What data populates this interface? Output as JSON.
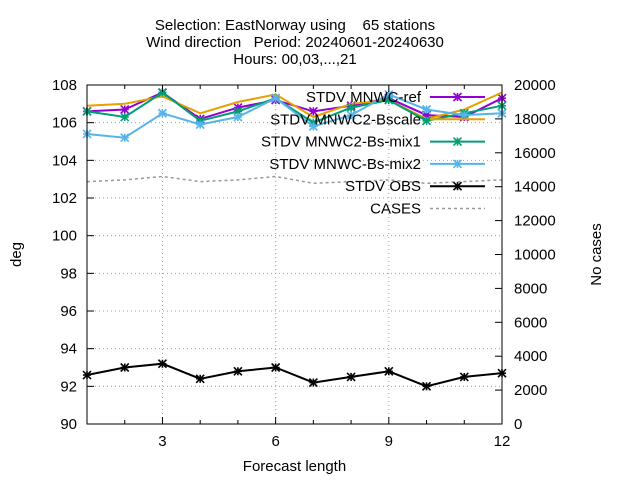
{
  "chart_data": {
    "type": "line",
    "title_lines": [
      "Selection: EastNorway using    65 stations",
      "Wind direction   Period: 20240601-20240630",
      "Hours: 00,03,...,21"
    ],
    "xlabel": "Forecast length",
    "ylabel": "deg",
    "y2label": "No cases",
    "xlim": [
      1,
      12
    ],
    "ylim": [
      90,
      108
    ],
    "y2lim": [
      0,
      20000
    ],
    "xticks": [
      "3",
      "6",
      "9",
      "12"
    ],
    "yticks": [
      "90",
      "92",
      "94",
      "96",
      "98",
      "100",
      "102",
      "104",
      "106",
      "108"
    ],
    "y2ticks": [
      "0",
      "2000",
      "4000",
      "6000",
      "8000",
      "10000",
      "12000",
      "14000",
      "16000",
      "18000",
      "20000"
    ],
    "grid": true,
    "legend_position": "top-right",
    "x": [
      1,
      2,
      3,
      4,
      5,
      6,
      7,
      8,
      9,
      10,
      11,
      12
    ],
    "series": [
      {
        "name": "STDV MNWC-ref",
        "color": "#9400d3",
        "marker": "star",
        "axis": "y1",
        "values": [
          106.6,
          106.7,
          107.6,
          106.2,
          106.8,
          107.2,
          106.6,
          106.9,
          107.3,
          106.4,
          106.3,
          107.3
        ]
      },
      {
        "name": "STDV MNWC2-Bscale",
        "color": "#e6a000",
        "marker": "none",
        "axis": "y1",
        "values": [
          106.9,
          107.0,
          107.4,
          106.5,
          107.1,
          107.5,
          106.3,
          107.0,
          107.2,
          106.2,
          106.7,
          107.6
        ]
      },
      {
        "name": "STDV MNWC2-Bs-mix1",
        "color": "#009e73",
        "marker": "star",
        "axis": "y1",
        "values": [
          106.6,
          106.3,
          107.6,
          106.1,
          106.6,
          107.3,
          106.0,
          106.8,
          107.2,
          106.1,
          106.5,
          106.9
        ]
      },
      {
        "name": "STDV MNWC-Bs-mix2",
        "color": "#56b4e9",
        "marker": "star",
        "axis": "y1",
        "values": [
          105.4,
          105.2,
          106.5,
          105.9,
          106.3,
          107.3,
          105.8,
          106.4,
          107.5,
          106.7,
          106.4,
          106.5
        ]
      },
      {
        "name": "STDV OBS",
        "color": "#000000",
        "marker": "star",
        "axis": "y1",
        "values": [
          92.6,
          93.0,
          93.2,
          92.4,
          92.8,
          93.0,
          92.2,
          92.5,
          92.8,
          92.0,
          92.5,
          92.7
        ]
      },
      {
        "name": "CASES",
        "color": "#999999",
        "marker": "none",
        "dashed": true,
        "axis": "y2",
        "values": [
          14300,
          14400,
          14600,
          14300,
          14400,
          14600,
          14200,
          14300,
          14400,
          14200,
          14300,
          14400
        ]
      }
    ]
  }
}
